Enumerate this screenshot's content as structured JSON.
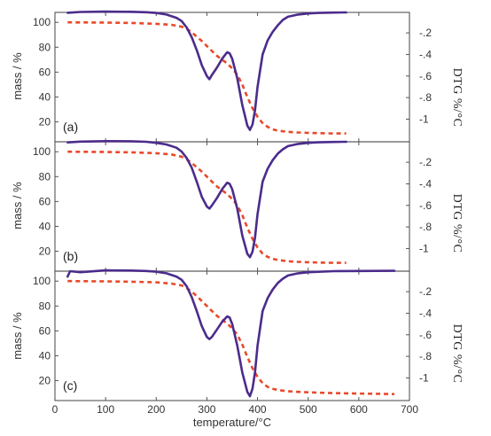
{
  "chart_data": {
    "type": "line",
    "layout": "three vertically stacked panels sharing the temperature axis",
    "xlabel": "temperature/°C",
    "ylabel": "mass / %",
    "ylabel_right": "DTG  %/°C",
    "xlim": [
      0,
      700
    ],
    "x_ticks": [
      0,
      100,
      200,
      300,
      400,
      500,
      600,
      700
    ],
    "mass_ticks": [
      20,
      40,
      60,
      80,
      100
    ],
    "dtg_ticks": [
      -0.2,
      -0.4,
      -0.6,
      -0.8,
      -1
    ],
    "mass_ylim": [
      4,
      108
    ],
    "dtg_ylim": [
      -1.21,
      -0.01
    ],
    "grid": false,
    "colors": {
      "mass": "#e8492a",
      "dtg": "#4b2c8c"
    },
    "panels": [
      {
        "label": "(a)",
        "series": [
          {
            "kind": "mass",
            "x": [
              25,
              100,
              150,
              200,
              230,
              250,
              260,
              270,
              280,
              290,
              300,
              310,
              320,
              330,
              340,
              350,
              360,
              370,
              380,
              390,
              400,
              410,
              420,
              430,
              440,
              460,
              480,
              500,
              520,
              540,
              575
            ],
            "y": [
              100,
              99.8,
              99.5,
              98.8,
              98,
              96.5,
              95,
              92,
              88.5,
              85,
              81,
              77,
              73,
              70,
              67,
              63,
              58,
              50,
              40,
              31,
              24,
              19,
              16,
              14,
              13,
              12,
              11.5,
              11.2,
              11,
              10.8,
              10.7
            ]
          },
          {
            "kind": "dtg",
            "x": [
              25,
              50,
              100,
              150,
              180,
              200,
              220,
              240,
              250,
              260,
              270,
              280,
              290,
              300,
              305,
              310,
              320,
              330,
              340,
              345,
              350,
              360,
              370,
              380,
              385,
              390,
              395,
              400,
              410,
              420,
              430,
              440,
              450,
              460,
              480,
              500,
              520,
              550,
              575
            ],
            "y": [
              -0.013,
              -0.006,
              -0.003,
              -0.004,
              -0.008,
              -0.015,
              -0.03,
              -0.06,
              -0.09,
              -0.15,
              -0.24,
              -0.36,
              -0.5,
              -0.6,
              -0.63,
              -0.59,
              -0.52,
              -0.44,
              -0.38,
              -0.39,
              -0.44,
              -0.62,
              -0.87,
              -1.06,
              -1.1,
              -1.05,
              -0.92,
              -0.7,
              -0.4,
              -0.27,
              -0.19,
              -0.13,
              -0.08,
              -0.05,
              -0.03,
              -0.02,
              -0.015,
              -0.012,
              -0.01
            ]
          }
        ]
      },
      {
        "label": "(b)",
        "series": [
          {
            "kind": "mass",
            "x": [
              25,
              100,
              150,
              200,
              230,
              250,
              260,
              270,
              280,
              290,
              300,
              310,
              320,
              330,
              340,
              350,
              360,
              370,
              380,
              390,
              400,
              410,
              420,
              430,
              440,
              460,
              480,
              500,
              520,
              540,
              575
            ],
            "y": [
              100,
              99.8,
              99.5,
              98.8,
              97.8,
              96,
              94,
              91,
              87.5,
              84,
              80,
              76,
              72,
              69,
              66,
              62,
              57,
              49,
              39,
              30,
              23,
              18,
              15.5,
              14,
              13,
              12,
              11.5,
              11.2,
              11,
              10.8,
              10.7
            ]
          },
          {
            "kind": "dtg",
            "x": [
              25,
              50,
              100,
              150,
              180,
              200,
              220,
              240,
              250,
              260,
              270,
              280,
              290,
              300,
              305,
              310,
              320,
              330,
              340,
              345,
              350,
              360,
              370,
              380,
              385,
              390,
              395,
              400,
              410,
              420,
              430,
              440,
              450,
              460,
              480,
              500,
              520,
              550,
              575
            ],
            "y": [
              -0.016,
              -0.008,
              -0.004,
              -0.005,
              -0.01,
              -0.02,
              -0.035,
              -0.065,
              -0.1,
              -0.16,
              -0.25,
              -0.38,
              -0.52,
              -0.61,
              -0.63,
              -0.6,
              -0.53,
              -0.45,
              -0.39,
              -0.4,
              -0.45,
              -0.63,
              -0.88,
              -1.05,
              -1.08,
              -1.03,
              -0.9,
              -0.68,
              -0.38,
              -0.26,
              -0.18,
              -0.12,
              -0.08,
              -0.05,
              -0.03,
              -0.02,
              -0.015,
              -0.012,
              -0.01
            ]
          }
        ]
      },
      {
        "label": "(c)",
        "series": [
          {
            "kind": "mass",
            "x": [
              25,
              100,
              150,
              200,
              230,
              250,
              260,
              270,
              280,
              290,
              300,
              310,
              320,
              330,
              340,
              350,
              360,
              370,
              380,
              390,
              400,
              410,
              420,
              430,
              440,
              460,
              480,
              500,
              550,
              600,
              670
            ],
            "y": [
              100,
              99.8,
              99.5,
              99,
              98,
              96.5,
              94.5,
              91.5,
              88,
              84,
              80,
              76,
              72,
              69,
              66,
              62,
              57,
              49,
              39,
              30,
              23,
              18,
              15,
              13.5,
              12.5,
              11.5,
              11,
              10.6,
              10,
              9.6,
              9.2
            ]
          },
          {
            "kind": "dtg",
            "x": [
              25,
              30,
              50,
              100,
              150,
              180,
              200,
              220,
              240,
              250,
              260,
              270,
              280,
              290,
              300,
              305,
              310,
              320,
              330,
              340,
              345,
              350,
              360,
              370,
              380,
              385,
              390,
              395,
              400,
              410,
              420,
              430,
              440,
              450,
              460,
              480,
              500,
              550,
              600,
              670
            ],
            "y": [
              -0.06,
              -0.01,
              -0.02,
              -0.003,
              -0.004,
              -0.008,
              -0.015,
              -0.03,
              -0.06,
              -0.09,
              -0.15,
              -0.25,
              -0.38,
              -0.52,
              -0.62,
              -0.64,
              -0.62,
              -0.55,
              -0.48,
              -0.43,
              -0.44,
              -0.5,
              -0.7,
              -0.95,
              -1.13,
              -1.17,
              -1.1,
              -0.95,
              -0.7,
              -0.38,
              -0.26,
              -0.18,
              -0.12,
              -0.08,
              -0.05,
              -0.03,
              -0.02,
              -0.01,
              -0.008,
              -0.007
            ]
          }
        ]
      }
    ]
  }
}
